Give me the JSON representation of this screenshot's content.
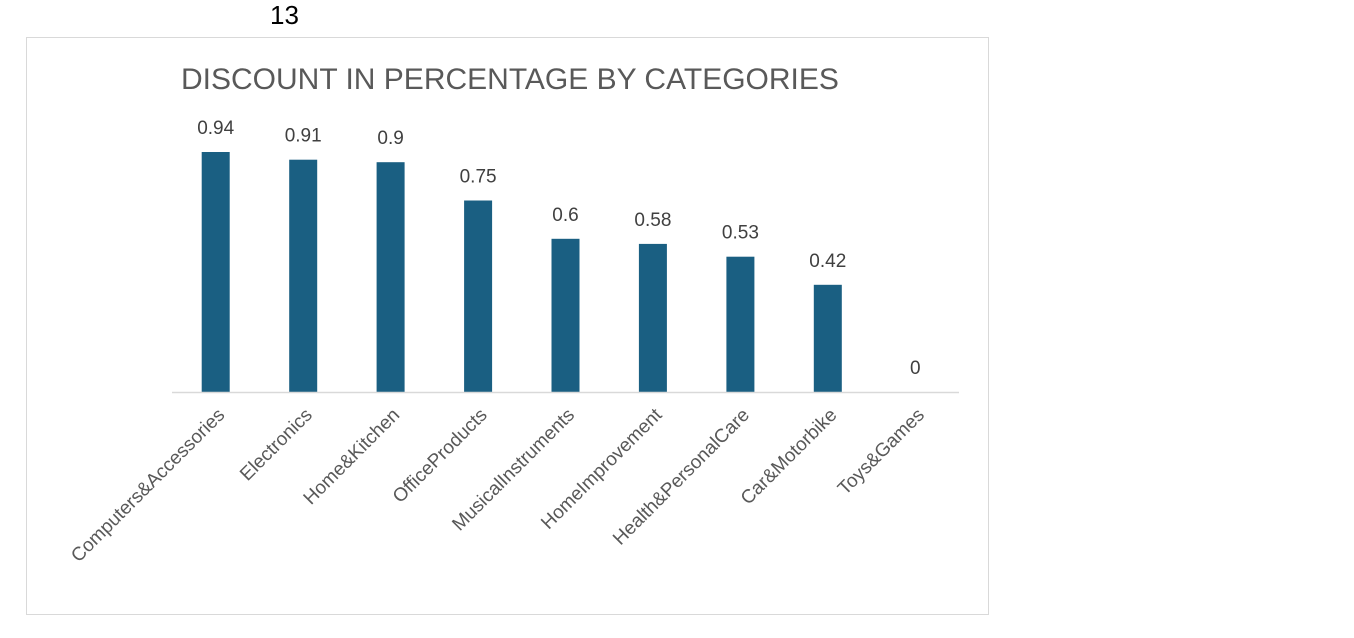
{
  "page": {
    "number": "13"
  },
  "colors": {
    "bar": "#1a5f82",
    "axis": "#d9d9d9"
  },
  "chart_data": {
    "type": "bar",
    "title": "DISCOUNT IN PERCENTAGE BY CATEGORIES",
    "xlabel": "",
    "ylabel": "",
    "categories": [
      "Computers&Accessories",
      "Electronics",
      "Home&Kitchen",
      "OfficeProducts",
      "MusicalInstruments",
      "HomeImprovement",
      "Health&PersonalCare",
      "Car&Motorbike",
      "Toys&Games"
    ],
    "values": [
      0.94,
      0.91,
      0.9,
      0.75,
      0.6,
      0.58,
      0.53,
      0.42,
      0
    ],
    "value_labels": [
      "0.94",
      "0.91",
      "0.9",
      "0.75",
      "0.6",
      "0.58",
      "0.53",
      "0.42",
      "0"
    ],
    "ylim": [
      0,
      0.94
    ],
    "grid": false,
    "legend": "none",
    "data_labels": "outside-end"
  }
}
